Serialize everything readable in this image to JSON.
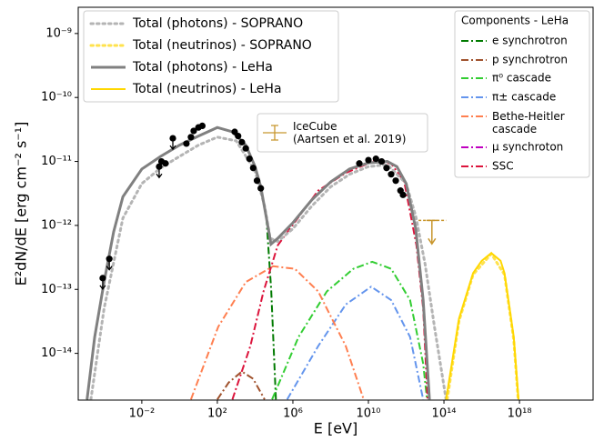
{
  "chart_data": {
    "type": "line",
    "x_label": "E [eV]",
    "y_label": "E²dN/dE [erg cm⁻² s⁻¹]",
    "xscale": "log",
    "yscale": "log",
    "xlim": [
      4.3e-06,
      7.9e+21
    ],
    "ylim": [
      1.86e-15,
      2.57e-09
    ],
    "xticks": [
      {
        "value": 0.01,
        "label": "10⁻²"
      },
      {
        "value": 100,
        "label": "10²"
      },
      {
        "value": 1000000.0,
        "label": "10⁶"
      },
      {
        "value": 10000000000.0,
        "label": "10¹⁰"
      },
      {
        "value": 100000000000000.0,
        "label": "10¹⁴"
      },
      {
        "value": 1e+18,
        "label": "10¹⁸"
      }
    ],
    "yticks": [
      {
        "value": 1e-09,
        "label": "10⁻⁹"
      },
      {
        "value": 1e-10,
        "label": "10⁻¹⁰"
      },
      {
        "value": 1e-11,
        "label": "10⁻¹¹"
      },
      {
        "value": 1e-12,
        "label": "10⁻¹²"
      },
      {
        "value": 1e-13,
        "label": "10⁻¹³"
      },
      {
        "value": 1e-14,
        "label": "10⁻¹⁴"
      }
    ],
    "components_legend_title": "Components - LeHa",
    "series": [
      {
        "name": "e synchrotron",
        "legend_group": "components",
        "color": "#007a00",
        "style": "dashdot",
        "width": 2,
        "x": [
          1.26e-05,
          3.2e-05,
          0.0001,
          0.00032,
          0.001,
          0.01,
          0.1,
          1,
          10,
          100,
          630,
          3200,
          10000.0,
          20000.0,
          40000.0,
          71000.0,
          126000.0
        ],
        "values": [
          1.9e-15,
          1.8e-14,
          1.3e-13,
          7.9e-13,
          2.8e-12,
          7.6e-12,
          1.2e-11,
          1.8e-11,
          2.5e-11,
          3.4e-11,
          2.9e-11,
          1.8e-11,
          8.3e-12,
          4e-12,
          1.3e-12,
          1e-13,
          1.9e-15
        ]
      },
      {
        "name": "p synchrotron",
        "legend_group": "components",
        "color": "#a0522d",
        "style": "dashdot",
        "width": 2,
        "x": [
          100,
          400,
          2000,
          7900,
          32000.0
        ],
        "values": [
          1.9e-15,
          3.5e-15,
          5.2e-15,
          4e-15,
          1.9e-15
        ]
      },
      {
        "name": "π⁰ cascade",
        "legend_group": "components",
        "color": "#32cd32",
        "style": "dashdot",
        "width": 2,
        "x": [
          79000.0,
          2000000.0,
          63000000.0,
          1600000000.0,
          16000000000.0,
          160000000000.0,
          1600000000000.0,
          7900000000000.0,
          12600000000000.0
        ],
        "values": [
          1.9e-15,
          1.8e-14,
          9.3e-14,
          2.1e-13,
          2.7e-13,
          2.1e-13,
          6.8e-14,
          6.9e-15,
          1.9e-15
        ]
      },
      {
        "name": "π± cascade",
        "legend_group": "components",
        "color": "#6495ed",
        "style": "dashdot",
        "width": 2,
        "x": [
          500000.0,
          22000000.0,
          630000000.0,
          14000000000.0,
          160000000000.0,
          1600000000000.0,
          7900000000000.0
        ],
        "values": [
          1.9e-15,
          1.3e-14,
          5.8e-14,
          1.1e-13,
          6.8e-14,
          1.8e-14,
          1.9e-15
        ]
      },
      {
        "name": "Bethe-Heitler\ncascade",
        "legend_group": "components",
        "color": "#ff7f50",
        "style": "dashdot",
        "width": 2,
        "x": [
          4,
          112,
          3200,
          89000.0,
          1260000.0,
          22000000.0,
          630000000.0,
          5600000000.0
        ],
        "values": [
          1.9e-15,
          2.6e-14,
          1.3e-13,
          2.3e-13,
          2.1e-13,
          9.3e-14,
          1.3e-14,
          1.9e-15
        ]
      },
      {
        "name": "μ synchroton",
        "legend_group": "components",
        "color": "#c000c0",
        "style": "dashdot",
        "width": 2,
        "x": [],
        "values": []
      },
      {
        "name": "SSC",
        "legend_group": "components",
        "color": "#dc143c",
        "style": "dashdot",
        "width": 2,
        "x": [
          630,
          5600,
          28000.0,
          160000.0,
          790000.0,
          22000000.0,
          630000000.0,
          18000000000.0,
          160000000000.0,
          790000000000.0,
          3500000000000.0,
          7900000000000.0,
          13500000000000.0
        ],
        "values": [
          1.9e-15,
          1.3e-14,
          9.3e-14,
          4.9e-13,
          9.3e-13,
          3.5e-12,
          6.6e-12,
          1e-11,
          9.3e-12,
          4.8e-12,
          4.9e-13,
          5e-14,
          1.9e-15
        ]
      },
      {
        "name": "Total (photons) - SOPRANO",
        "legend_group": "main",
        "color": "#b4b4b4",
        "style": "dotted",
        "width": 3,
        "x": [
          2e-05,
          0.0001,
          0.001,
          0.01,
          0.1,
          1,
          10,
          100,
          1000,
          10000.0,
          32000.0,
          63000.0,
          160000.0,
          1000000.0,
          10000000.0,
          100000000.0,
          1000000000.0,
          10000000000.0,
          100000000000.0,
          1000000000000.0,
          3200000000000.0,
          10000000000000.0,
          32000000000000.0,
          130000000000000.0
        ],
        "values": [
          1.9e-15,
          5e-14,
          1.3e-12,
          4.5e-12,
          7.9e-12,
          1.2e-11,
          1.8e-11,
          2.4e-11,
          2.1e-11,
          7.1e-12,
          2e-12,
          6.3e-13,
          5.6e-13,
          8.9e-13,
          2e-12,
          4e-12,
          6.3e-12,
          8.3e-12,
          8.9e-12,
          4.5e-12,
          1.4e-12,
          2.5e-13,
          2.5e-14,
          1.9e-15
        ]
      },
      {
        "name": "Total (neutrinos) - SOPRANO",
        "legend_group": "main",
        "color": "#ffe24d",
        "style": "dotted",
        "width": 3,
        "x": [
          150000000000000.0,
          630000000000000.0,
          3500000000000000.0,
          3.2e+16,
          1.6e+17,
          5e+17,
          8.5e+17
        ],
        "values": [
          1.9e-15,
          3.2e-14,
          1.7e-13,
          3.6e-13,
          1.7e-13,
          1.6e-14,
          1.9e-15
        ]
      },
      {
        "name": "Total (photons) - LeHa",
        "legend_group": "main",
        "color": "#808080",
        "style": "solid",
        "width": 3,
        "x": [
          1.26e-05,
          3.2e-05,
          0.0001,
          0.00032,
          0.001,
          0.01,
          0.1,
          1,
          10,
          100,
          630,
          3200,
          10000.0,
          20000.0,
          40000.0,
          69000.0,
          160000.0,
          1000000.0,
          10000000.0,
          100000000.0,
          1000000000.0,
          10000000000.0,
          100000000000.0,
          320000000000.0,
          1000000000000.0,
          3200000000000.0,
          7900000000000.0,
          17000000000000.0
        ],
        "values": [
          1.9e-15,
          1.8e-14,
          1.3e-13,
          7.9e-13,
          2.8e-12,
          7.6e-12,
          1.2e-11,
          1.8e-11,
          2.5e-11,
          3.4e-11,
          2.9e-11,
          1.8e-11,
          8.3e-12,
          4e-12,
          1.3e-12,
          5.1e-13,
          6.3e-13,
          1.1e-12,
          2.5e-12,
          4.8e-12,
          7.6e-12,
          9.5e-12,
          1e-11,
          8.3e-12,
          4.5e-12,
          8.9e-13,
          6.8e-14,
          1.9e-15
        ]
      },
      {
        "name": "Total (neutrinos) - LeHa",
        "legend_group": "main",
        "color": "#ffd700",
        "style": "solid",
        "width": 2,
        "x": [
          130000000000000.0,
          630000000000000.0,
          3500000000000000.0,
          1e+16,
          3.2e+16,
          1e+17,
          1.6e+17,
          5e+17,
          8.9e+17
        ],
        "values": [
          1.9e-15,
          3.5e-14,
          1.8e-13,
          2.8e-13,
          3.7e-13,
          2.8e-13,
          1.8e-13,
          1.8e-14,
          1.9e-15
        ]
      }
    ],
    "points": {
      "color": "#000000",
      "x": [
        8.5e-05,
        0.00019,
        0.083,
        0.11,
        0.18,
        0.44,
        2.3,
        4,
        5.6,
        10,
        16,
        830,
        1260,
        2000,
        3200,
        5000,
        7900,
        12600.0,
        20000.0,
        3300000000.0,
        10000000000.0,
        25000000000.0,
        50000000000.0,
        91000000000.0,
        160000000000.0,
        280000000000.0,
        500000000000.0,
        680000000000.0
      ],
      "values": [
        1.5e-13,
        3e-13,
        8.3e-12,
        1e-11,
        9.3e-12,
        2.3e-11,
        1.9e-11,
        2.4e-11,
        3e-11,
        3.4e-11,
        3.6e-11,
        2.9e-11,
        2.5e-11,
        2e-11,
        1.6e-11,
        1.1e-11,
        7.9e-12,
        5e-12,
        3.8e-12,
        9.3e-12,
        1.05e-11,
        1.1e-11,
        1e-11,
        7.9e-12,
        6.3e-12,
        5e-12,
        3.5e-12,
        3e-12
      ],
      "upper_limit": [
        true,
        true,
        true,
        false,
        false,
        true,
        false,
        false,
        false,
        false,
        false,
        false,
        false,
        false,
        false,
        false,
        false,
        false,
        false,
        false,
        false,
        false,
        false,
        false,
        false,
        false,
        false,
        false
      ]
    },
    "icecube": {
      "label": "IceCube\n(Aartsen et al. 2019)",
      "color": "#c8962d",
      "x": 23000000000000.0,
      "xmin": 4500000000000.0,
      "xmax": 130000000000000.0,
      "value": 1.2e-12,
      "upper_limit": true
    }
  }
}
